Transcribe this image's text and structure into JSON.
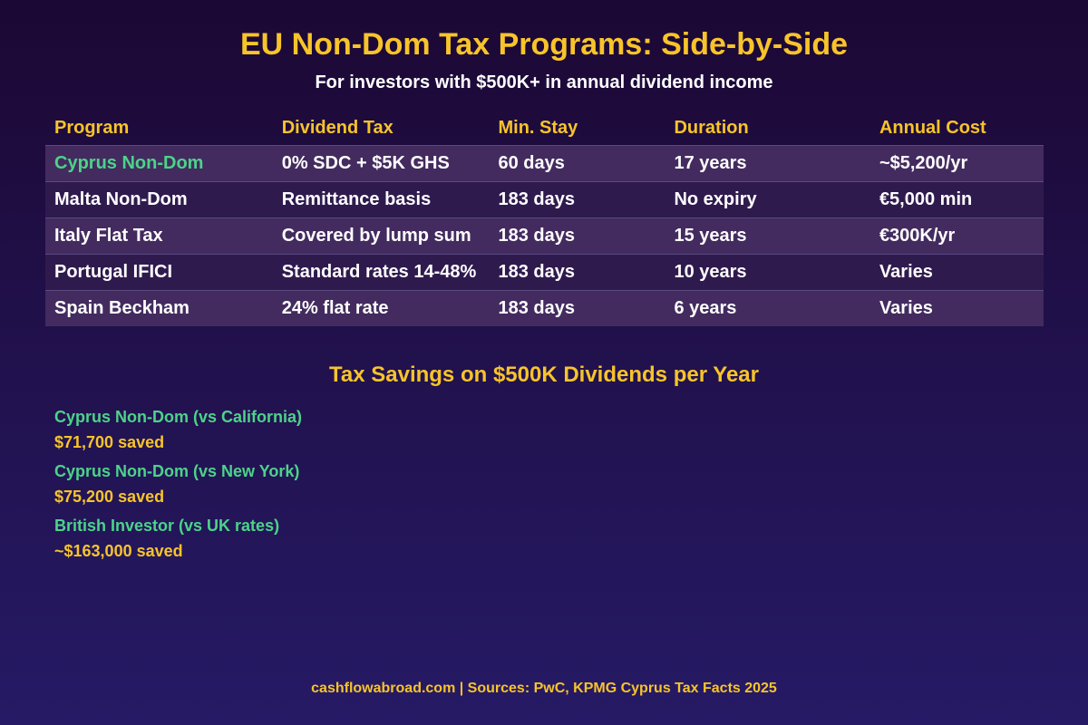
{
  "header": {
    "title": "EU Non-Dom Tax Programs: Side-by-Side",
    "subtitle": "For investors with $500K+ in annual dividend income"
  },
  "table": {
    "columns": [
      "Program",
      "Dividend Tax",
      "Min. Stay",
      "Duration",
      "Annual Cost"
    ],
    "rows": [
      [
        "Cyprus Non-Dom",
        "0% SDC + $5K GHS",
        "60 days",
        "17 years",
        "~$5,200/yr"
      ],
      [
        "Malta Non-Dom",
        "Remittance basis",
        "183 days",
        "No expiry",
        "€5,000 min"
      ],
      [
        "Italy Flat Tax",
        "Covered by lump sum",
        "183 days",
        "15 years",
        "€300K/yr"
      ],
      [
        "Portugal IFICI",
        "Standard rates 14-48%",
        "183 days",
        "10 years",
        "Varies"
      ],
      [
        "Spain Beckham",
        "24% flat rate",
        "183 days",
        "6 years",
        "Varies"
      ]
    ]
  },
  "savings": {
    "title": "Tax Savings on $500K Dividends per Year",
    "items": [
      {
        "label": "Cyprus Non-Dom (vs California)",
        "amount": "$71,700 saved"
      },
      {
        "label": "Cyprus Non-Dom (vs New York)",
        "amount": "$75,200 saved"
      },
      {
        "label": "British Investor (vs UK rates)",
        "amount": "~$163,000 saved"
      }
    ]
  },
  "footer": "cashflowabroad.com | Sources: PwC, KPMG Cyprus Tax Facts 2025"
}
